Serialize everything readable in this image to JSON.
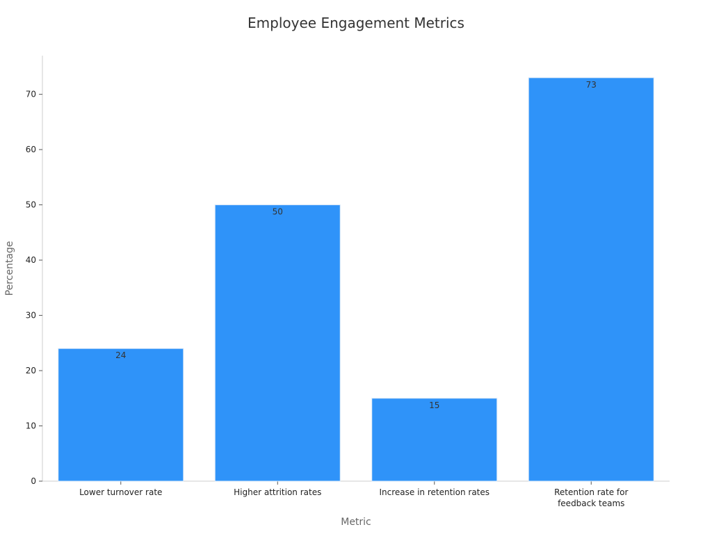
{
  "chart_data": {
    "type": "bar",
    "title": "Employee Engagement Metrics",
    "xlabel": "Metric",
    "ylabel": "Percentage",
    "categories": [
      [
        "Lower turnover rate"
      ],
      [
        "Higher attrition rates"
      ],
      [
        "Increase in retention rates"
      ],
      [
        "Retention rate for",
        "feedback teams"
      ]
    ],
    "values": [
      24,
      50,
      15,
      73
    ],
    "value_labels": [
      "24",
      "50",
      "15",
      "73"
    ],
    "yticks": [
      0,
      10,
      20,
      30,
      40,
      50,
      60,
      70
    ],
    "ylim": [
      0,
      77
    ],
    "grid": false,
    "legend": "none",
    "colors": {
      "bar": "#2f93f9",
      "bar_edge": "#d9e8f7",
      "axis": "#cccccc",
      "tick_text": "#222222",
      "label_text": "#666666",
      "title_text": "#333333",
      "value_text": "#333333"
    }
  }
}
